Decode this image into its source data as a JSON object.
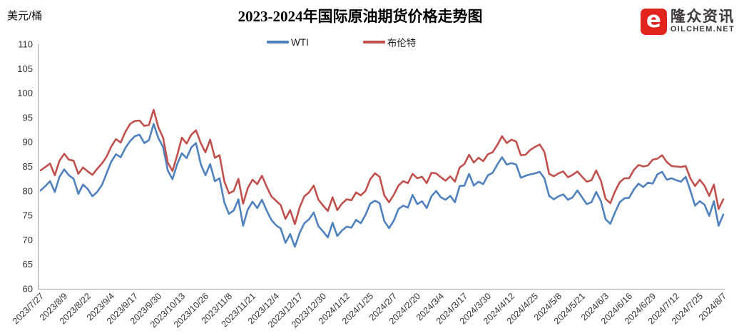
{
  "header": {
    "unit_label": "美元/桶",
    "title": "2023-2024年国际原油期货价格走势图"
  },
  "logo": {
    "brand_cn": "隆众资讯",
    "brand_en": "OILCHEM.NET",
    "icon_glyph": "e",
    "icon_color": "#E1251C"
  },
  "chart_data": {
    "type": "line",
    "title": "2023-2024年国际原油期货价格走势图",
    "ylabel": "美元/桶",
    "ylim": [
      60,
      110
    ],
    "ytick_step": 5,
    "grid": false,
    "legend_position": "top-center",
    "axis_color": "#9E9E9E",
    "tick_label_color": "#333333",
    "x_labels": [
      "2023/7/27",
      "2023/8/9",
      "2023/8/22",
      "2023/9/4",
      "2023/9/17",
      "2023/9/30",
      "2023/10/13",
      "2023/10/26",
      "2023/11/8",
      "2023/11/21",
      "2023/12/4",
      "2023/12/17",
      "2023/12/30",
      "2024/1/12",
      "2024/1/25",
      "2024/2/7",
      "2024/2/20",
      "2024/3/4",
      "2024/3/17",
      "2024/3/30",
      "2024/4/12",
      "2024/4/25",
      "2024/5/8",
      "2024/5/21",
      "2024/6/3",
      "2024/6/16",
      "2024/6/29",
      "2024/7/12",
      "2024/7/25",
      "2024/8/7"
    ],
    "points_per_label_interval": 5,
    "series": [
      {
        "name": "WTI",
        "color": "#4F81BD",
        "values": [
          80.1,
          81.0,
          82.0,
          79.8,
          82.9,
          84.4,
          83.2,
          82.5,
          79.4,
          81.3,
          80.4,
          78.9,
          79.8,
          81.2,
          83.6,
          86.0,
          87.5,
          86.9,
          88.8,
          90.2,
          91.2,
          91.5,
          89.8,
          90.4,
          93.7,
          90.8,
          89.0,
          84.2,
          82.4,
          85.5,
          87.7,
          86.7,
          88.9,
          89.8,
          85.5,
          83.2,
          85.5,
          82.0,
          82.6,
          77.7,
          75.3,
          76.0,
          78.3,
          72.9,
          76.2,
          77.8,
          76.5,
          78.2,
          76.0,
          74.1,
          73.0,
          72.3,
          69.4,
          71.2,
          68.6,
          71.4,
          73.4,
          74.2,
          75.6,
          72.8,
          71.7,
          70.5,
          73.5,
          70.8,
          71.9,
          72.7,
          72.5,
          74.1,
          73.4,
          75.1,
          77.4,
          78.0,
          77.5,
          73.8,
          72.4,
          73.9,
          76.3,
          77.0,
          76.6,
          79.2,
          77.3,
          77.9,
          76.5,
          78.9,
          80.0,
          78.7,
          78.2,
          79.0,
          77.7,
          81.0,
          81.1,
          83.5,
          81.1,
          81.9,
          81.4,
          83.2,
          83.7,
          85.4,
          86.9,
          85.4,
          85.7,
          85.4,
          82.7,
          83.1,
          83.4,
          83.6,
          83.9,
          82.6,
          79.0,
          78.3,
          78.9,
          79.3,
          78.2,
          78.7,
          80.1,
          78.7,
          77.3,
          77.7,
          79.8,
          77.9,
          74.2,
          73.3,
          75.6,
          77.7,
          78.5,
          78.6,
          80.3,
          81.5,
          80.8,
          81.7,
          81.5,
          83.4,
          83.9,
          82.3,
          82.6,
          82.2,
          81.9,
          82.9,
          80.1,
          77.0,
          77.9,
          77.2,
          74.9,
          77.9,
          72.9,
          75.2
        ]
      },
      {
        "name": "布伦特",
        "color": "#C0504D",
        "values": [
          84.2,
          84.9,
          85.6,
          83.2,
          86.2,
          87.6,
          86.4,
          86.2,
          83.5,
          84.8,
          84.0,
          83.3,
          84.5,
          85.6,
          87.0,
          89.1,
          90.6,
          89.9,
          92.1,
          93.7,
          94.3,
          94.4,
          93.3,
          93.5,
          96.6,
          93.0,
          90.9,
          85.8,
          84.1,
          87.3,
          90.9,
          89.7,
          91.5,
          92.4,
          89.8,
          87.9,
          90.5,
          86.8,
          87.3,
          82.0,
          79.5,
          80.0,
          82.5,
          77.4,
          80.6,
          82.3,
          81.4,
          83.1,
          80.9,
          78.9,
          78.0,
          77.1,
          74.3,
          76.1,
          73.2,
          76.6,
          78.9,
          79.7,
          81.1,
          78.2,
          77.0,
          75.9,
          78.7,
          76.1,
          77.4,
          78.3,
          78.1,
          79.7,
          79.1,
          80.0,
          82.4,
          83.6,
          82.9,
          79.1,
          77.7,
          79.2,
          81.1,
          82.0,
          81.6,
          83.5,
          82.6,
          82.9,
          81.6,
          83.7,
          83.6,
          82.8,
          82.1,
          83.0,
          81.9,
          84.8,
          85.5,
          87.4,
          85.8,
          86.8,
          86.1,
          87.5,
          87.9,
          89.4,
          91.2,
          89.8,
          90.5,
          90.1,
          87.3,
          87.4,
          88.4,
          89.0,
          89.5,
          88.0,
          83.5,
          83.0,
          83.6,
          84.0,
          82.8,
          83.3,
          84.0,
          82.9,
          81.9,
          82.2,
          84.2,
          82.1,
          78.4,
          77.5,
          79.9,
          81.8,
          82.6,
          82.6,
          84.3,
          85.3,
          85.0,
          85.2,
          86.4,
          86.6,
          87.3,
          85.9,
          85.1,
          85.0,
          84.9,
          85.1,
          82.6,
          81.0,
          82.3,
          81.1,
          79.0,
          81.3,
          76.3,
          78.3
        ]
      }
    ]
  }
}
